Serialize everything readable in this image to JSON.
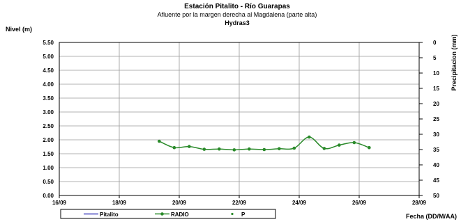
{
  "chart_data": {
    "type": "line",
    "title": "Estación Pitalito  - Río Guarapas",
    "subtitle": "Afluente por la margen derecha al Magdalena (parte alta)",
    "subtitle2": "Hydras3",
    "ylabel": "Nivel (m)",
    "y2label": "Precipitacion (mm)",
    "xlabel": "Fecha (DD/M/AA)",
    "ylim": [
      0,
      5.5
    ],
    "y2lim": [
      0,
      50
    ],
    "y2_inverted": true,
    "x_ticks": [
      "16/09",
      "18/09",
      "20/09",
      "22/09",
      "24/09",
      "26/09",
      "28/09"
    ],
    "y_ticks": [
      "0.00",
      "0.50",
      "1.00",
      "1.50",
      "2.00",
      "2.50",
      "3.00",
      "3.50",
      "4.00",
      "4.50",
      "5.00",
      "5.50"
    ],
    "y2_ticks": [
      "0",
      "5",
      "10",
      "15",
      "20",
      "25",
      "30",
      "35",
      "40",
      "45",
      "50"
    ],
    "grid": true,
    "legend_position": "bottom",
    "series": [
      {
        "name": "Pitalito",
        "color": "#7b7bd0",
        "values": []
      },
      {
        "name": "RADIO",
        "color": "#2a8a2a",
        "x": [
          "19/09 08:00",
          "19/09 20:00",
          "20/09 08:00",
          "20/09 20:00",
          "21/09 08:00",
          "21/09 20:00",
          "22/09 08:00",
          "22/09 20:00",
          "23/09 08:00",
          "23/09 20:00",
          "24/09 08:00",
          "24/09 20:00",
          "25/09 08:00",
          "25/09 20:00",
          "26/09 08:00"
        ],
        "values": [
          1.95,
          1.72,
          1.76,
          1.66,
          1.67,
          1.64,
          1.67,
          1.65,
          1.68,
          1.7,
          2.1,
          1.69,
          1.81,
          1.9,
          1.72
        ]
      },
      {
        "name": "P",
        "color": "#2a8a2a",
        "values": []
      }
    ]
  }
}
